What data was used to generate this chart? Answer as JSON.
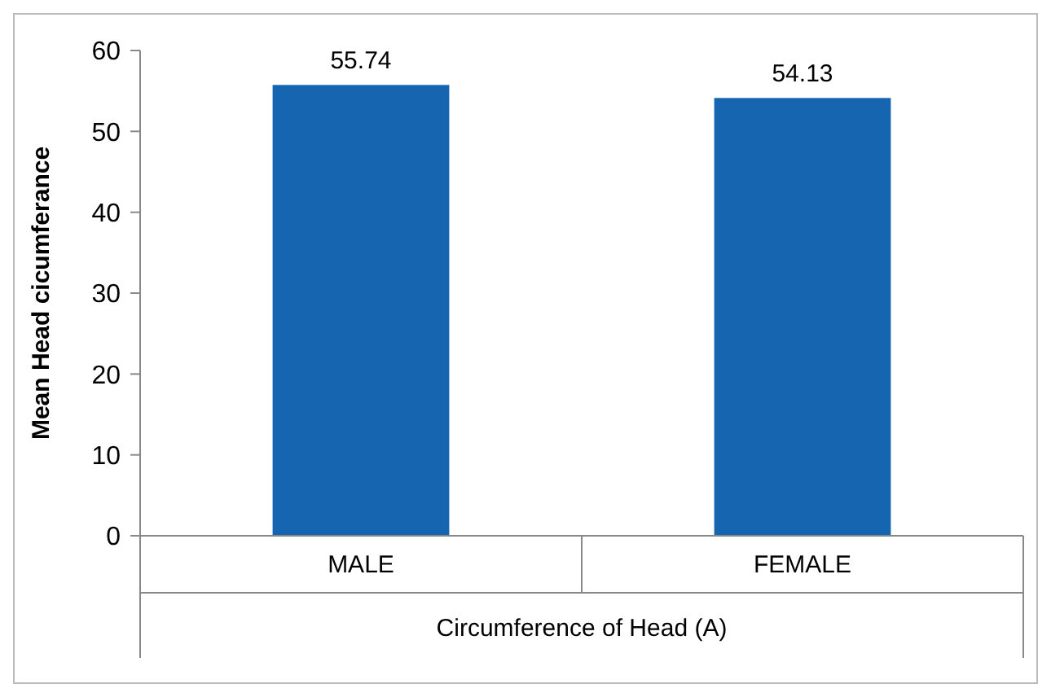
{
  "chart_data": {
    "type": "bar",
    "xlabel": "Circumference of Head (A)",
    "ylabel": "Mean Head cicumferance",
    "categories": [
      "MALE",
      "FEMALE"
    ],
    "values": [
      55.74,
      54.13
    ],
    "color": "#1565b0",
    "ylim": [
      0,
      60
    ],
    "yticks": [
      0,
      10,
      20,
      30,
      40,
      50,
      60
    ],
    "grid": false,
    "data_labels": true
  }
}
